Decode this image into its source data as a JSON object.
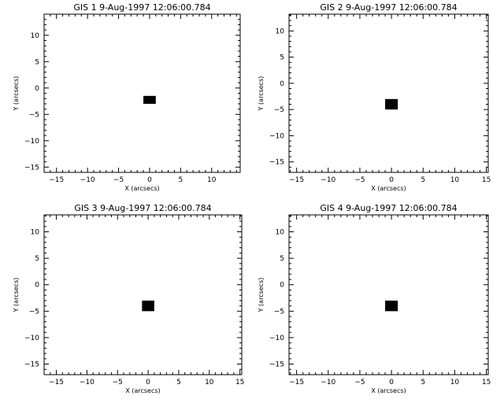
{
  "chart_data": [
    {
      "type": "scatter",
      "title": "GIS 1  9-Aug-1997 12:06:00.784",
      "xlabel": "X (arcsecs)",
      "ylabel": "Y (arcsecs)",
      "xlim": [
        -17,
        14.6
      ],
      "ylim": [
        -16,
        14
      ],
      "xticks": [
        -15,
        -10,
        -5,
        0,
        5,
        10
      ],
      "yticks": [
        -15,
        -10,
        -5,
        0,
        5,
        10
      ],
      "rects": [
        {
          "x0": -1.0,
          "x1": 1.0,
          "y0": -3.0,
          "y1": -1.5
        }
      ]
    },
    {
      "type": "scatter",
      "title": "GIS 2  9-Aug-1997 12:06:00.784",
      "xlabel": "X (arcsecs)",
      "ylabel": "Y (arcsecs)",
      "xlim": [
        -16.2,
        15.3
      ],
      "ylim": [
        -17,
        13.2
      ],
      "xticks": [
        -15,
        -10,
        -5,
        0,
        5,
        10,
        15
      ],
      "yticks": [
        -15,
        -10,
        -5,
        0,
        5,
        10
      ],
      "rects": [
        {
          "x0": -1.0,
          "x1": 1.0,
          "y0": -5.0,
          "y1": -3.0
        }
      ]
    },
    {
      "type": "scatter",
      "title": "GIS 3  9-Aug-1997 12:06:00.784",
      "xlabel": "X (arcsecs)",
      "ylabel": "Y (arcsecs)",
      "xlim": [
        -17,
        15.3
      ],
      "ylim": [
        -17,
        13.2
      ],
      "xticks": [
        -15,
        -10,
        -5,
        0,
        5,
        10,
        15
      ],
      "yticks": [
        -15,
        -10,
        -5,
        0,
        5,
        10
      ],
      "rects": [
        {
          "x0": -1.0,
          "x1": 1.0,
          "y0": -5.0,
          "y1": -3.0
        }
      ]
    },
    {
      "type": "scatter",
      "title": "GIS 4  9-Aug-1997 12:06:00.784",
      "xlabel": "X (arcsecs)",
      "ylabel": "Y (arcsecs)",
      "xlim": [
        -16.2,
        15.3
      ],
      "ylim": [
        -17,
        13.2
      ],
      "xticks": [
        -15,
        -10,
        -5,
        0,
        5,
        10,
        15
      ],
      "yticks": [
        -15,
        -10,
        -5,
        0,
        5,
        10
      ],
      "rects": [
        {
          "x0": -1.0,
          "x1": 1.0,
          "y0": -5.0,
          "y1": -3.0
        }
      ]
    }
  ]
}
